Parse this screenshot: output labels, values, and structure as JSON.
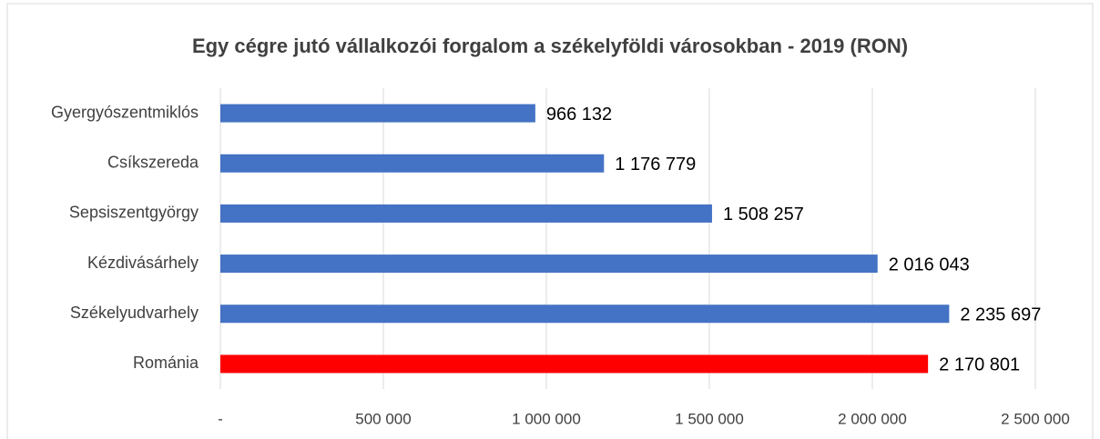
{
  "chart_data": {
    "type": "bar",
    "orientation": "horizontal",
    "title": "Egy cégre jutó vállalkozói forgalom a székelyföldi városokban - 2019 (RON)",
    "categories": [
      "Gyergyószentmiklós",
      "Csíkszereda",
      "Sepsiszentgyörgy",
      "Kézdivásárhely",
      "Székelyudvarhely",
      "Románia"
    ],
    "values": [
      966132,
      1176779,
      1508257,
      2016043,
      2235697,
      2170801
    ],
    "value_labels": [
      "966 132",
      "1 176 779",
      "1 508 257",
      "2 016 043",
      "2 235 697",
      "2 170 801"
    ],
    "colors": [
      "#4472c4",
      "#4472c4",
      "#4472c4",
      "#4472c4",
      "#4472c4",
      "#ff0000"
    ],
    "xlim": [
      0,
      2500000
    ],
    "xticks": [
      {
        "value": 0,
        "label": "-"
      },
      {
        "value": 500000,
        "label": "500 000"
      },
      {
        "value": 1000000,
        "label": "1 000 000"
      },
      {
        "value": 1500000,
        "label": "1 500 000"
      },
      {
        "value": 2000000,
        "label": "2 000 000"
      },
      {
        "value": 2500000,
        "label": "2 500 000"
      }
    ],
    "grid": true
  }
}
